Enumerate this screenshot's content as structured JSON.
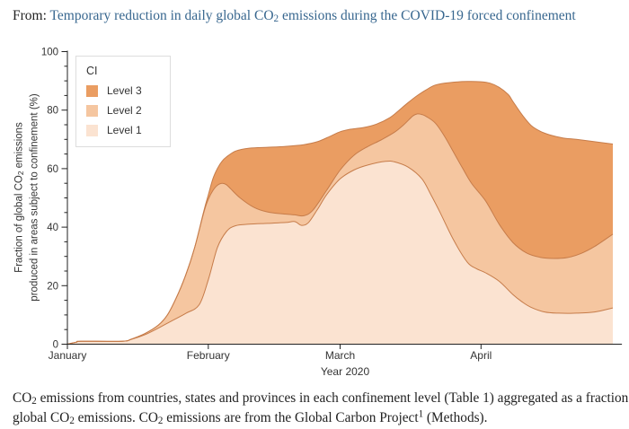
{
  "header": {
    "prefix": "From:",
    "title_segments": [
      {
        "t": "Temporary reduction in daily global CO"
      },
      {
        "t": "2",
        "sub": true
      },
      {
        "t": " emissions during the COVID-19 forced confinement"
      }
    ]
  },
  "chart_data": {
    "type": "area",
    "stacked": true,
    "x_unit": "days since 1 January 2020",
    "x_domain_days": [
      0,
      120
    ],
    "x_axis_overhang_days": 2,
    "x_ticks": [
      {
        "day": 0,
        "label": "January"
      },
      {
        "day": 31,
        "label": "February"
      },
      {
        "day": 60,
        "label": "March"
      },
      {
        "day": 91,
        "label": "April"
      }
    ],
    "xlabel": "Year 2020",
    "ylim": [
      0,
      100
    ],
    "y_ticks": [
      0,
      20,
      40,
      60,
      80,
      100
    ],
    "y_minor_step": 5,
    "ylabel_line1_segments": [
      {
        "t": "Fraction of global CO"
      },
      {
        "t": "2",
        "sub": true
      },
      {
        "t": " emissions"
      }
    ],
    "ylabel_line2": "produced in areas subject to confinement (%)",
    "legend": {
      "title": "CI",
      "entries": [
        {
          "label": "Level 3",
          "color": "#EA9D62"
        },
        {
          "label": "Level 2",
          "color": "#F5C6A0"
        },
        {
          "label": "Level 1",
          "color": "#FBE3D1"
        }
      ]
    },
    "stroke_color": "#C67C4A",
    "axis_color": "#222222",
    "note": "series values are cumulative stacked tops (percent of global CO2 emissions)",
    "series": [
      {
        "name": "Level 1",
        "color": "#FBE3D1",
        "points": [
          [
            0,
            0
          ],
          [
            2,
            0.7
          ],
          [
            3,
            1
          ],
          [
            12,
            1
          ],
          [
            14,
            1.6
          ],
          [
            17,
            3.2
          ],
          [
            20,
            5.5
          ],
          [
            23,
            8
          ],
          [
            26,
            10.5
          ],
          [
            29,
            13.5
          ],
          [
            31,
            22
          ],
          [
            33,
            33
          ],
          [
            35,
            38.5
          ],
          [
            37,
            40.5
          ],
          [
            40,
            41
          ],
          [
            44,
            41.3
          ],
          [
            48,
            41.6
          ],
          [
            50,
            41.9
          ],
          [
            51.5,
            40.6
          ],
          [
            53,
            41.5
          ],
          [
            55,
            46
          ],
          [
            57,
            51
          ],
          [
            60,
            56.5
          ],
          [
            63,
            59.5
          ],
          [
            66,
            61.2
          ],
          [
            70,
            62.5
          ],
          [
            72,
            62.3
          ],
          [
            75,
            60.5
          ],
          [
            78,
            56.5
          ],
          [
            80,
            51
          ],
          [
            82,
            45
          ],
          [
            85,
            35.5
          ],
          [
            88,
            28
          ],
          [
            90,
            25.8
          ],
          [
            92,
            24.4
          ],
          [
            95,
            21.5
          ],
          [
            98,
            17
          ],
          [
            100,
            14.5
          ],
          [
            102,
            12.6
          ],
          [
            105,
            11
          ],
          [
            108,
            10.6
          ],
          [
            112,
            10.6
          ],
          [
            116,
            11
          ],
          [
            120,
            12.4
          ]
        ]
      },
      {
        "name": "Level 2",
        "color": "#F5C6A0",
        "points": [
          [
            0,
            0
          ],
          [
            2,
            0.7
          ],
          [
            3,
            1
          ],
          [
            12,
            1
          ],
          [
            14,
            1.7
          ],
          [
            17,
            3.6
          ],
          [
            20,
            6.5
          ],
          [
            22,
            10
          ],
          [
            24,
            16
          ],
          [
            26,
            23.5
          ],
          [
            28,
            33
          ],
          [
            30,
            45
          ],
          [
            31,
            49.5
          ],
          [
            32,
            52.5
          ],
          [
            33,
            54.3
          ],
          [
            34,
            55
          ],
          [
            35,
            54.5
          ],
          [
            36,
            53
          ],
          [
            38,
            50
          ],
          [
            41,
            46.8
          ],
          [
            44,
            45.2
          ],
          [
            47,
            44.6
          ],
          [
            50,
            44.2
          ],
          [
            52,
            43.9
          ],
          [
            54,
            45.8
          ],
          [
            57,
            52.5
          ],
          [
            60,
            59.5
          ],
          [
            63,
            64.5
          ],
          [
            66,
            67.5
          ],
          [
            69,
            69.8
          ],
          [
            72,
            72.5
          ],
          [
            74,
            75
          ],
          [
            76,
            78
          ],
          [
            77,
            78.7
          ],
          [
            78,
            78.5
          ],
          [
            79,
            77.8
          ],
          [
            81,
            75.5
          ],
          [
            83,
            71
          ],
          [
            85,
            65.5
          ],
          [
            87,
            60
          ],
          [
            89,
            54.8
          ],
          [
            92,
            49
          ],
          [
            95,
            41
          ],
          [
            98,
            34.8
          ],
          [
            101,
            31.2
          ],
          [
            104,
            29.7
          ],
          [
            107,
            29.3
          ],
          [
            110,
            29.6
          ],
          [
            113,
            31
          ],
          [
            116,
            33.4
          ],
          [
            120,
            37.6
          ]
        ]
      },
      {
        "name": "Level 3",
        "color": "#EA9D62",
        "points": [
          [
            0,
            0
          ],
          [
            2,
            0.7
          ],
          [
            3,
            1
          ],
          [
            12,
            1
          ],
          [
            14,
            1.7
          ],
          [
            17,
            3.6
          ],
          [
            20,
            6.5
          ],
          [
            22,
            10
          ],
          [
            24,
            16
          ],
          [
            26,
            23.5
          ],
          [
            28,
            33
          ],
          [
            30,
            45.5
          ],
          [
            31,
            51
          ],
          [
            32,
            56.5
          ],
          [
            33,
            60
          ],
          [
            34,
            62.5
          ],
          [
            35,
            64
          ],
          [
            37,
            66
          ],
          [
            40,
            67
          ],
          [
            44,
            67.3
          ],
          [
            48,
            67.6
          ],
          [
            52,
            68.2
          ],
          [
            55,
            69.2
          ],
          [
            58,
            71.2
          ],
          [
            60,
            72.6
          ],
          [
            62,
            73.4
          ],
          [
            65,
            74
          ],
          [
            68,
            75.2
          ],
          [
            71,
            77.5
          ],
          [
            73,
            80
          ],
          [
            75,
            82.6
          ],
          [
            77,
            85
          ],
          [
            79,
            87
          ],
          [
            81,
            88.6
          ],
          [
            84,
            89.4
          ],
          [
            88,
            89.8
          ],
          [
            91,
            89.7
          ],
          [
            93,
            89.2
          ],
          [
            95,
            87.8
          ],
          [
            97,
            85.3
          ],
          [
            98,
            83
          ],
          [
            100,
            78.5
          ],
          [
            102,
            74.8
          ],
          [
            104,
            72.8
          ],
          [
            106,
            71.6
          ],
          [
            109,
            70.5
          ],
          [
            112,
            70
          ],
          [
            116,
            69.2
          ],
          [
            120,
            68.4
          ]
        ]
      }
    ]
  },
  "caption": {
    "line1_segments": [
      {
        "t": "CO"
      },
      {
        "t": "2",
        "sub": true
      },
      {
        "t": " emissions from countries, states and provinces in each confinement level (Table 1) aggregated as a fraction of"
      }
    ],
    "line2_segments": [
      {
        "t": "global CO"
      },
      {
        "t": "2",
        "sub": true
      },
      {
        "t": " emissions. CO"
      },
      {
        "t": "2",
        "sub": true
      },
      {
        "t": " emissions are from the Global Carbon Project"
      },
      {
        "t": "1",
        "sup": true
      },
      {
        "t": " (Methods)."
      }
    ]
  }
}
